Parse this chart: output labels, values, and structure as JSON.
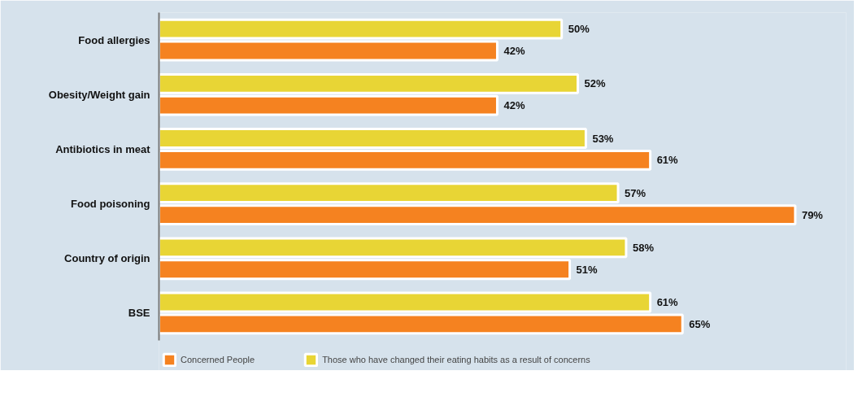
{
  "chart_data": {
    "type": "bar",
    "orientation": "horizontal",
    "categories": [
      "Food allergies",
      "Obesity/Weight gain",
      "Antibiotics in meat",
      "Food poisoning",
      "Country of origin",
      "BSE"
    ],
    "series": [
      {
        "name": "Concerned People",
        "color": "#f58220",
        "values": [
          42,
          42,
          61,
          79,
          51,
          65
        ],
        "value_labels": [
          "42%",
          "42%",
          "61%",
          "79%",
          "51%",
          "65%"
        ]
      },
      {
        "name": "Those who have changed their eating habits as a result of concerns",
        "color": "#e8d535",
        "values": [
          50,
          52,
          53,
          57,
          58,
          61
        ],
        "value_labels": [
          "50%",
          "52%",
          "53%",
          "57%",
          "58%",
          "61%"
        ]
      }
    ],
    "legend": "bottom"
  }
}
